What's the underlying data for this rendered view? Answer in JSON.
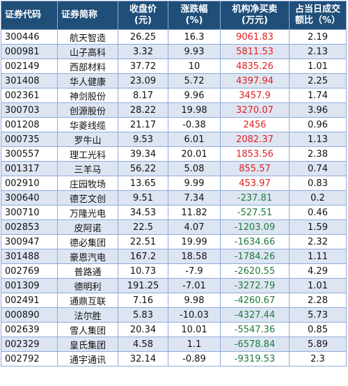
{
  "headers": [
    "证券代码",
    "证券简称",
    "收盘价\n(元)",
    "涨跌幅\n(%)",
    "机构净买卖\n(万元)",
    "占当日成交\n额比（%）"
  ],
  "rows": [
    [
      "300446",
      "航天智造",
      "26.25",
      "16.3",
      "9061.83",
      "2.19"
    ],
    [
      "000981",
      "山子高科",
      "3.32",
      "9.93",
      "5811.53",
      "2.13"
    ],
    [
      "002149",
      "西部材料",
      "37.72",
      "10",
      "4835.26",
      "1.01"
    ],
    [
      "301408",
      "华人健康",
      "23.09",
      "5.72",
      "4397.94",
      "2.25"
    ],
    [
      "002361",
      "神剑股份",
      "8.17",
      "9.96",
      "3457.9",
      "1.74"
    ],
    [
      "300703",
      "创源股份",
      "28.22",
      "19.98",
      "3270.07",
      "3.96"
    ],
    [
      "001208",
      "华菱线缆",
      "21.17",
      "-0.38",
      "2456",
      "0.96"
    ],
    [
      "000735",
      "罗牛山",
      "9.53",
      "6.01",
      "2082.37",
      "1.13"
    ],
    [
      "300557",
      "理工光科",
      "39.34",
      "20.01",
      "1853.56",
      "2.38"
    ],
    [
      "001317",
      "三羊马",
      "56.22",
      "5.08",
      "855.57",
      "0.74"
    ],
    [
      "002910",
      "庄园牧场",
      "13.65",
      "9.99",
      "453.97",
      "0.83"
    ],
    [
      "300640",
      "德艺文创",
      "9.51",
      "7.34",
      "-237.81",
      "0.2"
    ],
    [
      "300710",
      "万隆光电",
      "34.53",
      "11.82",
      "-527.51",
      "0.46"
    ],
    [
      "002853",
      "皮阿诺",
      "22.5",
      "4.07",
      "-1203.09",
      "1.59"
    ],
    [
      "300947",
      "德必集团",
      "22.51",
      "19.99",
      "-1634.66",
      "2.32"
    ],
    [
      "301488",
      "豪恩汽电",
      "167.2",
      "18.58",
      "-1784.26",
      "1.11"
    ],
    [
      "002769",
      "普路通",
      "10.73",
      "-7.9",
      "-2620.55",
      "4.29"
    ],
    [
      "001309",
      "德明利",
      "191.25",
      "-7.01",
      "-3272.79",
      "1.01"
    ],
    [
      "002491",
      "通鼎互联",
      "7.16",
      "9.98",
      "-4260.67",
      "2.28"
    ],
    [
      "000890",
      "法尔胜",
      "5.83",
      "-10.03",
      "-4327.44",
      "5.73"
    ],
    [
      "002639",
      "雪人集团",
      "20.34",
      "10.01",
      "-5547.36",
      "0.85"
    ],
    [
      "002329",
      "皇氏集团",
      "4.58",
      "1.1",
      "-6578.84",
      "5.89"
    ],
    [
      "002792",
      "通宇通讯",
      "32.14",
      "-0.89",
      "-9319.53",
      "2.3"
    ]
  ],
  "colors": {
    "header_bg": "#1f4e79",
    "row_shade": "#dde5f2",
    "net_buy_positive": "#e02020",
    "net_buy_negative": "#1e7a3c",
    "grid_line": "#8eaadb"
  }
}
